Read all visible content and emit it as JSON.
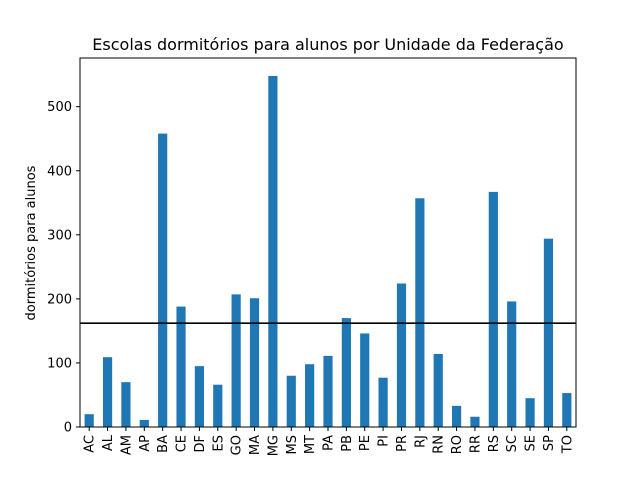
{
  "chart_data": {
    "type": "bar",
    "title": "Escolas dormitórios para alunos por Unidade da Federação",
    "xlabel": "",
    "ylabel": "dormitórios para alunos",
    "categories": [
      "AC",
      "AL",
      "AM",
      "AP",
      "BA",
      "CE",
      "DF",
      "ES",
      "GO",
      "MA",
      "MG",
      "MS",
      "MT",
      "PA",
      "PB",
      "PE",
      "PI",
      "PR",
      "RJ",
      "RN",
      "RO",
      "RR",
      "RS",
      "SC",
      "SE",
      "SP",
      "TO"
    ],
    "values": [
      20,
      109,
      70,
      11,
      458,
      188,
      95,
      66,
      207,
      201,
      548,
      80,
      98,
      111,
      170,
      146,
      77,
      224,
      357,
      114,
      33,
      16,
      367,
      196,
      45,
      294,
      53
    ],
    "ylim": [
      0,
      576
    ],
    "yticks": [
      0,
      100,
      200,
      300,
      400,
      500
    ],
    "reference_line": 162,
    "bar_color": "#1f77b4",
    "line_color": "#000000",
    "grid": false,
    "legend": "none"
  }
}
